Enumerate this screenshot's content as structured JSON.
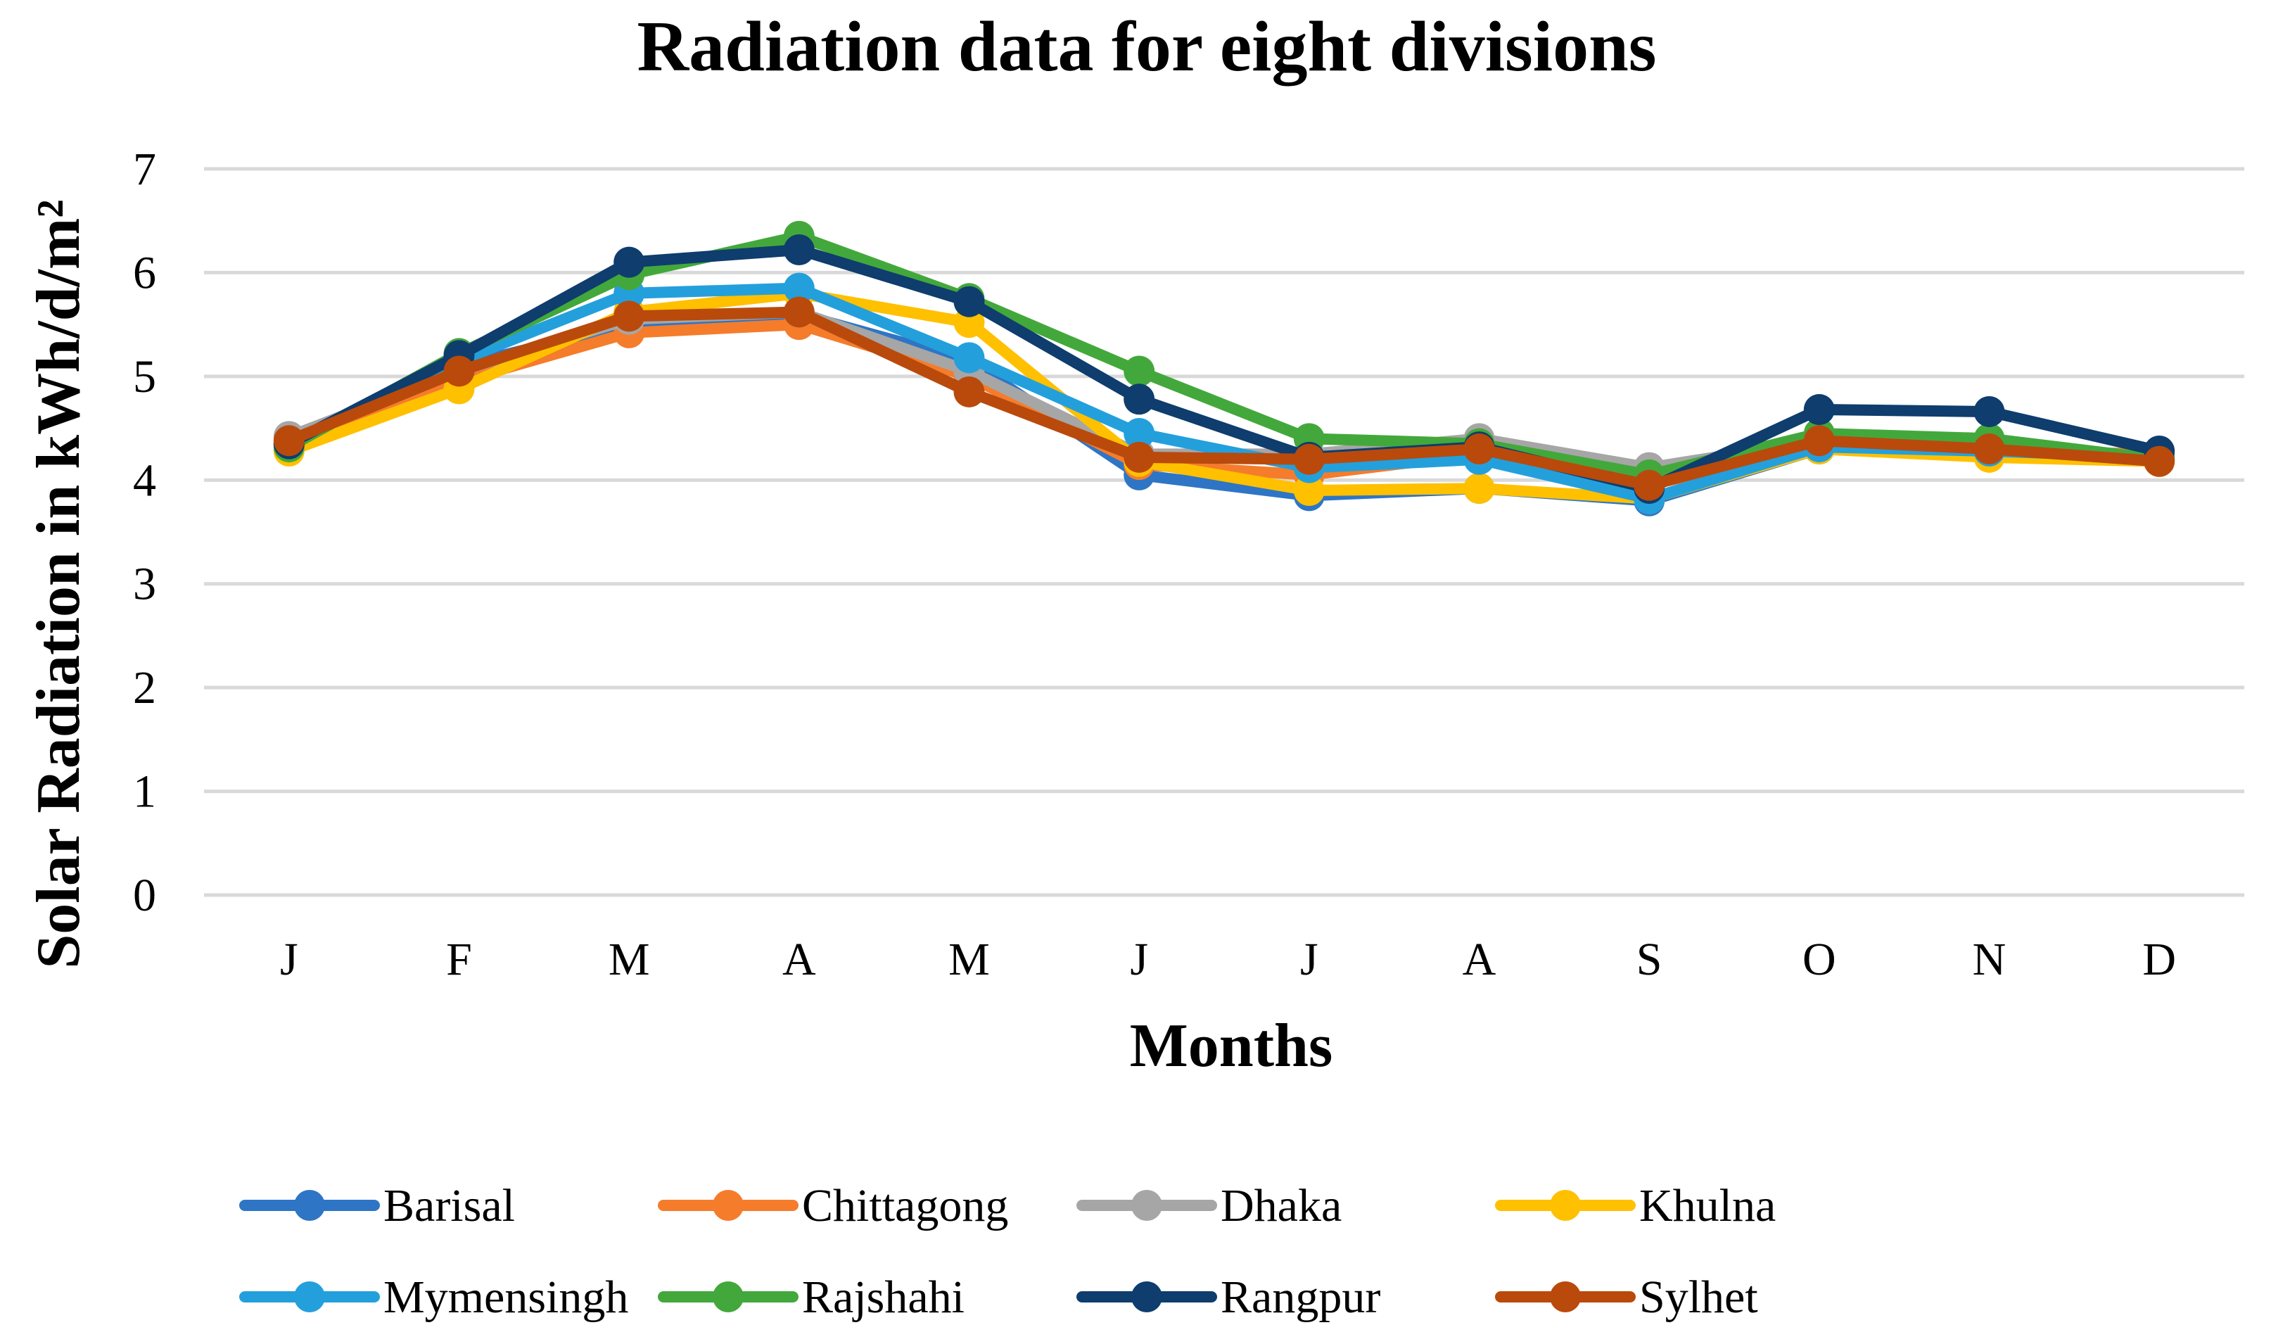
{
  "chart_data": {
    "type": "line",
    "title": "Radiation data for eight divisions",
    "xlabel": "Months",
    "ylabel": "Solar  Radiation  in kWh/d/m²",
    "ylim": [
      0,
      7
    ],
    "yticks": [
      "0",
      "1",
      "2",
      "3",
      "4",
      "5",
      "6",
      "7"
    ],
    "grid": true,
    "legend_position": "bottom",
    "categories": [
      "J",
      "F",
      "M",
      "A",
      "M",
      "J",
      "J",
      "A",
      "S",
      "O",
      "N",
      "D"
    ],
    "series": [
      {
        "name": "Barisal",
        "color": "#2E75C5",
        "values": [
          4.35,
          5.1,
          5.5,
          5.6,
          5.15,
          4.05,
          3.85,
          3.92,
          3.8,
          4.3,
          4.25,
          4.2
        ]
      },
      {
        "name": "Chittagong",
        "color": "#F57C2B",
        "values": [
          4.38,
          4.95,
          5.42,
          5.5,
          5.0,
          4.15,
          4.05,
          4.25,
          3.95,
          4.35,
          4.28,
          4.25
        ]
      },
      {
        "name": "Dhaka",
        "color": "#A6A6A6",
        "values": [
          4.42,
          5.05,
          5.55,
          5.62,
          5.05,
          4.25,
          4.25,
          4.4,
          4.12,
          4.38,
          4.3,
          4.22
        ]
      },
      {
        "name": "Khulna",
        "color": "#FFC000",
        "values": [
          4.28,
          4.88,
          5.62,
          5.8,
          5.52,
          4.18,
          3.9,
          3.92,
          3.82,
          4.3,
          4.22,
          4.18
        ]
      },
      {
        "name": "Mymensingh",
        "color": "#23A0DC",
        "values": [
          4.35,
          5.15,
          5.8,
          5.85,
          5.18,
          4.45,
          4.12,
          4.2,
          3.82,
          4.32,
          4.28,
          4.22
        ]
      },
      {
        "name": "Rajshahi",
        "color": "#43A83B",
        "values": [
          4.32,
          5.22,
          5.98,
          6.35,
          5.75,
          5.05,
          4.4,
          4.35,
          4.05,
          4.45,
          4.4,
          4.2
        ]
      },
      {
        "name": "Rangpur",
        "color": "#0E3D6E",
        "values": [
          4.35,
          5.2,
          6.1,
          6.22,
          5.72,
          4.78,
          4.22,
          4.32,
          3.92,
          4.68,
          4.66,
          4.28
        ]
      },
      {
        "name": "Sylhet",
        "color": "#B94A0C",
        "values": [
          4.38,
          5.05,
          5.58,
          5.62,
          4.85,
          4.22,
          4.2,
          4.3,
          3.95,
          4.38,
          4.3,
          4.18
        ]
      }
    ]
  }
}
